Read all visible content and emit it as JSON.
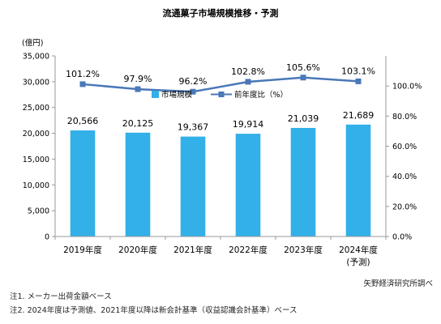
{
  "chart_data": {
    "type": "bar+line",
    "title": "流通菓子市場規模推移・予測",
    "left_axis_unit": "(億円)",
    "categories": [
      "2019年度",
      "2020年度",
      "2021年度",
      "2022年度",
      "2023年度",
      "2024年度"
    ],
    "category_sublabels": [
      "",
      "",
      "",
      "",
      "",
      "(予測)"
    ],
    "series": [
      {
        "name": "市場規模",
        "type": "bar",
        "axis": "left",
        "values": [
          20566,
          20125,
          19367,
          19914,
          21039,
          21689
        ],
        "labels": [
          "20,566",
          "20,125",
          "19,367",
          "19,914",
          "21,039",
          "21,689"
        ],
        "color": "#33b0e8"
      },
      {
        "name": "前年度比（%）",
        "type": "line",
        "axis": "right",
        "values": [
          101.2,
          97.9,
          96.2,
          102.8,
          105.6,
          103.1
        ],
        "labels": [
          "101.2%",
          "97.9%",
          "96.2%",
          "102.8%",
          "105.6%",
          "103.1%"
        ],
        "color": "#4a78b8"
      }
    ],
    "ylim_left": [
      0,
      35000
    ],
    "left_ticks": [
      0,
      5000,
      10000,
      15000,
      20000,
      25000,
      30000,
      35000
    ],
    "left_tick_labels": [
      "0",
      "5,000",
      "10,000",
      "15,000",
      "20,000",
      "25,000",
      "30,000",
      "35,000"
    ],
    "ylim_right": [
      0,
      120
    ],
    "right_ticks": [
      0,
      20,
      40,
      60,
      80,
      100
    ],
    "right_tick_labels": [
      "0.0%",
      "20.0%",
      "40.0%",
      "60.0%",
      "80.0%",
      "100.0%"
    ],
    "legend_position": "top-center",
    "grid": false
  },
  "source": "矢野経済研究所調べ",
  "notes": [
    "注1.  メーカー出荷金額ベース",
    "注2.  2024年度は予測値、2021年度以降は新会計基準（収益認識会計基準）ベース"
  ]
}
